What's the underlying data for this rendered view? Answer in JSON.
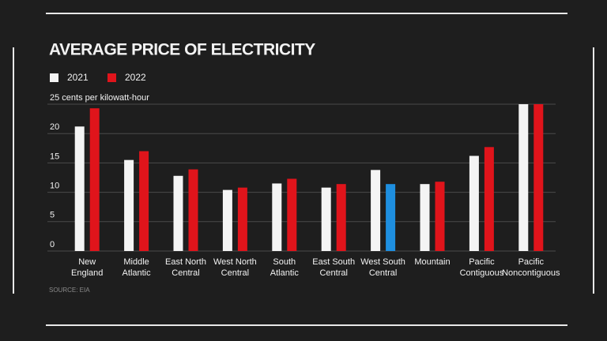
{
  "chart_data": {
    "type": "bar",
    "title": "AVERAGE PRICE OF ELECTRICITY",
    "source": "SOURCE: EIA",
    "categories": [
      "New\nEngland",
      "Middle\nAtlantic",
      "East North\nCentral",
      "West North\nCentral",
      "South\nAtlantic",
      "East South\nCentral",
      "West South\nCentral",
      "Mountain",
      "Pacific\nContiguous",
      "Pacific\nNoncontiguous"
    ],
    "series": [
      {
        "name": "2021",
        "color": "#f4f4f4",
        "values": [
          21.2,
          15.5,
          12.8,
          10.4,
          11.5,
          10.8,
          13.8,
          11.4,
          16.2,
          25
        ]
      },
      {
        "name": "2022",
        "color": "#e0141b",
        "values": [
          24.3,
          17.0,
          13.9,
          10.8,
          12.3,
          11.4,
          11.4,
          11.8,
          17.7,
          25
        ],
        "colors": [
          "#e0141b",
          "#e0141b",
          "#e0141b",
          "#e0141b",
          "#e0141b",
          "#e0141b",
          "#1e8fe0",
          "#e0141b",
          "#e0141b",
          "#e0141b"
        ]
      }
    ],
    "ylim": [
      0,
      25
    ],
    "yticks": [
      0,
      5,
      10,
      15,
      20,
      {
        "value": 25,
        "label": "25 cents per kilowatt-hour"
      }
    ],
    "grid": true
  }
}
